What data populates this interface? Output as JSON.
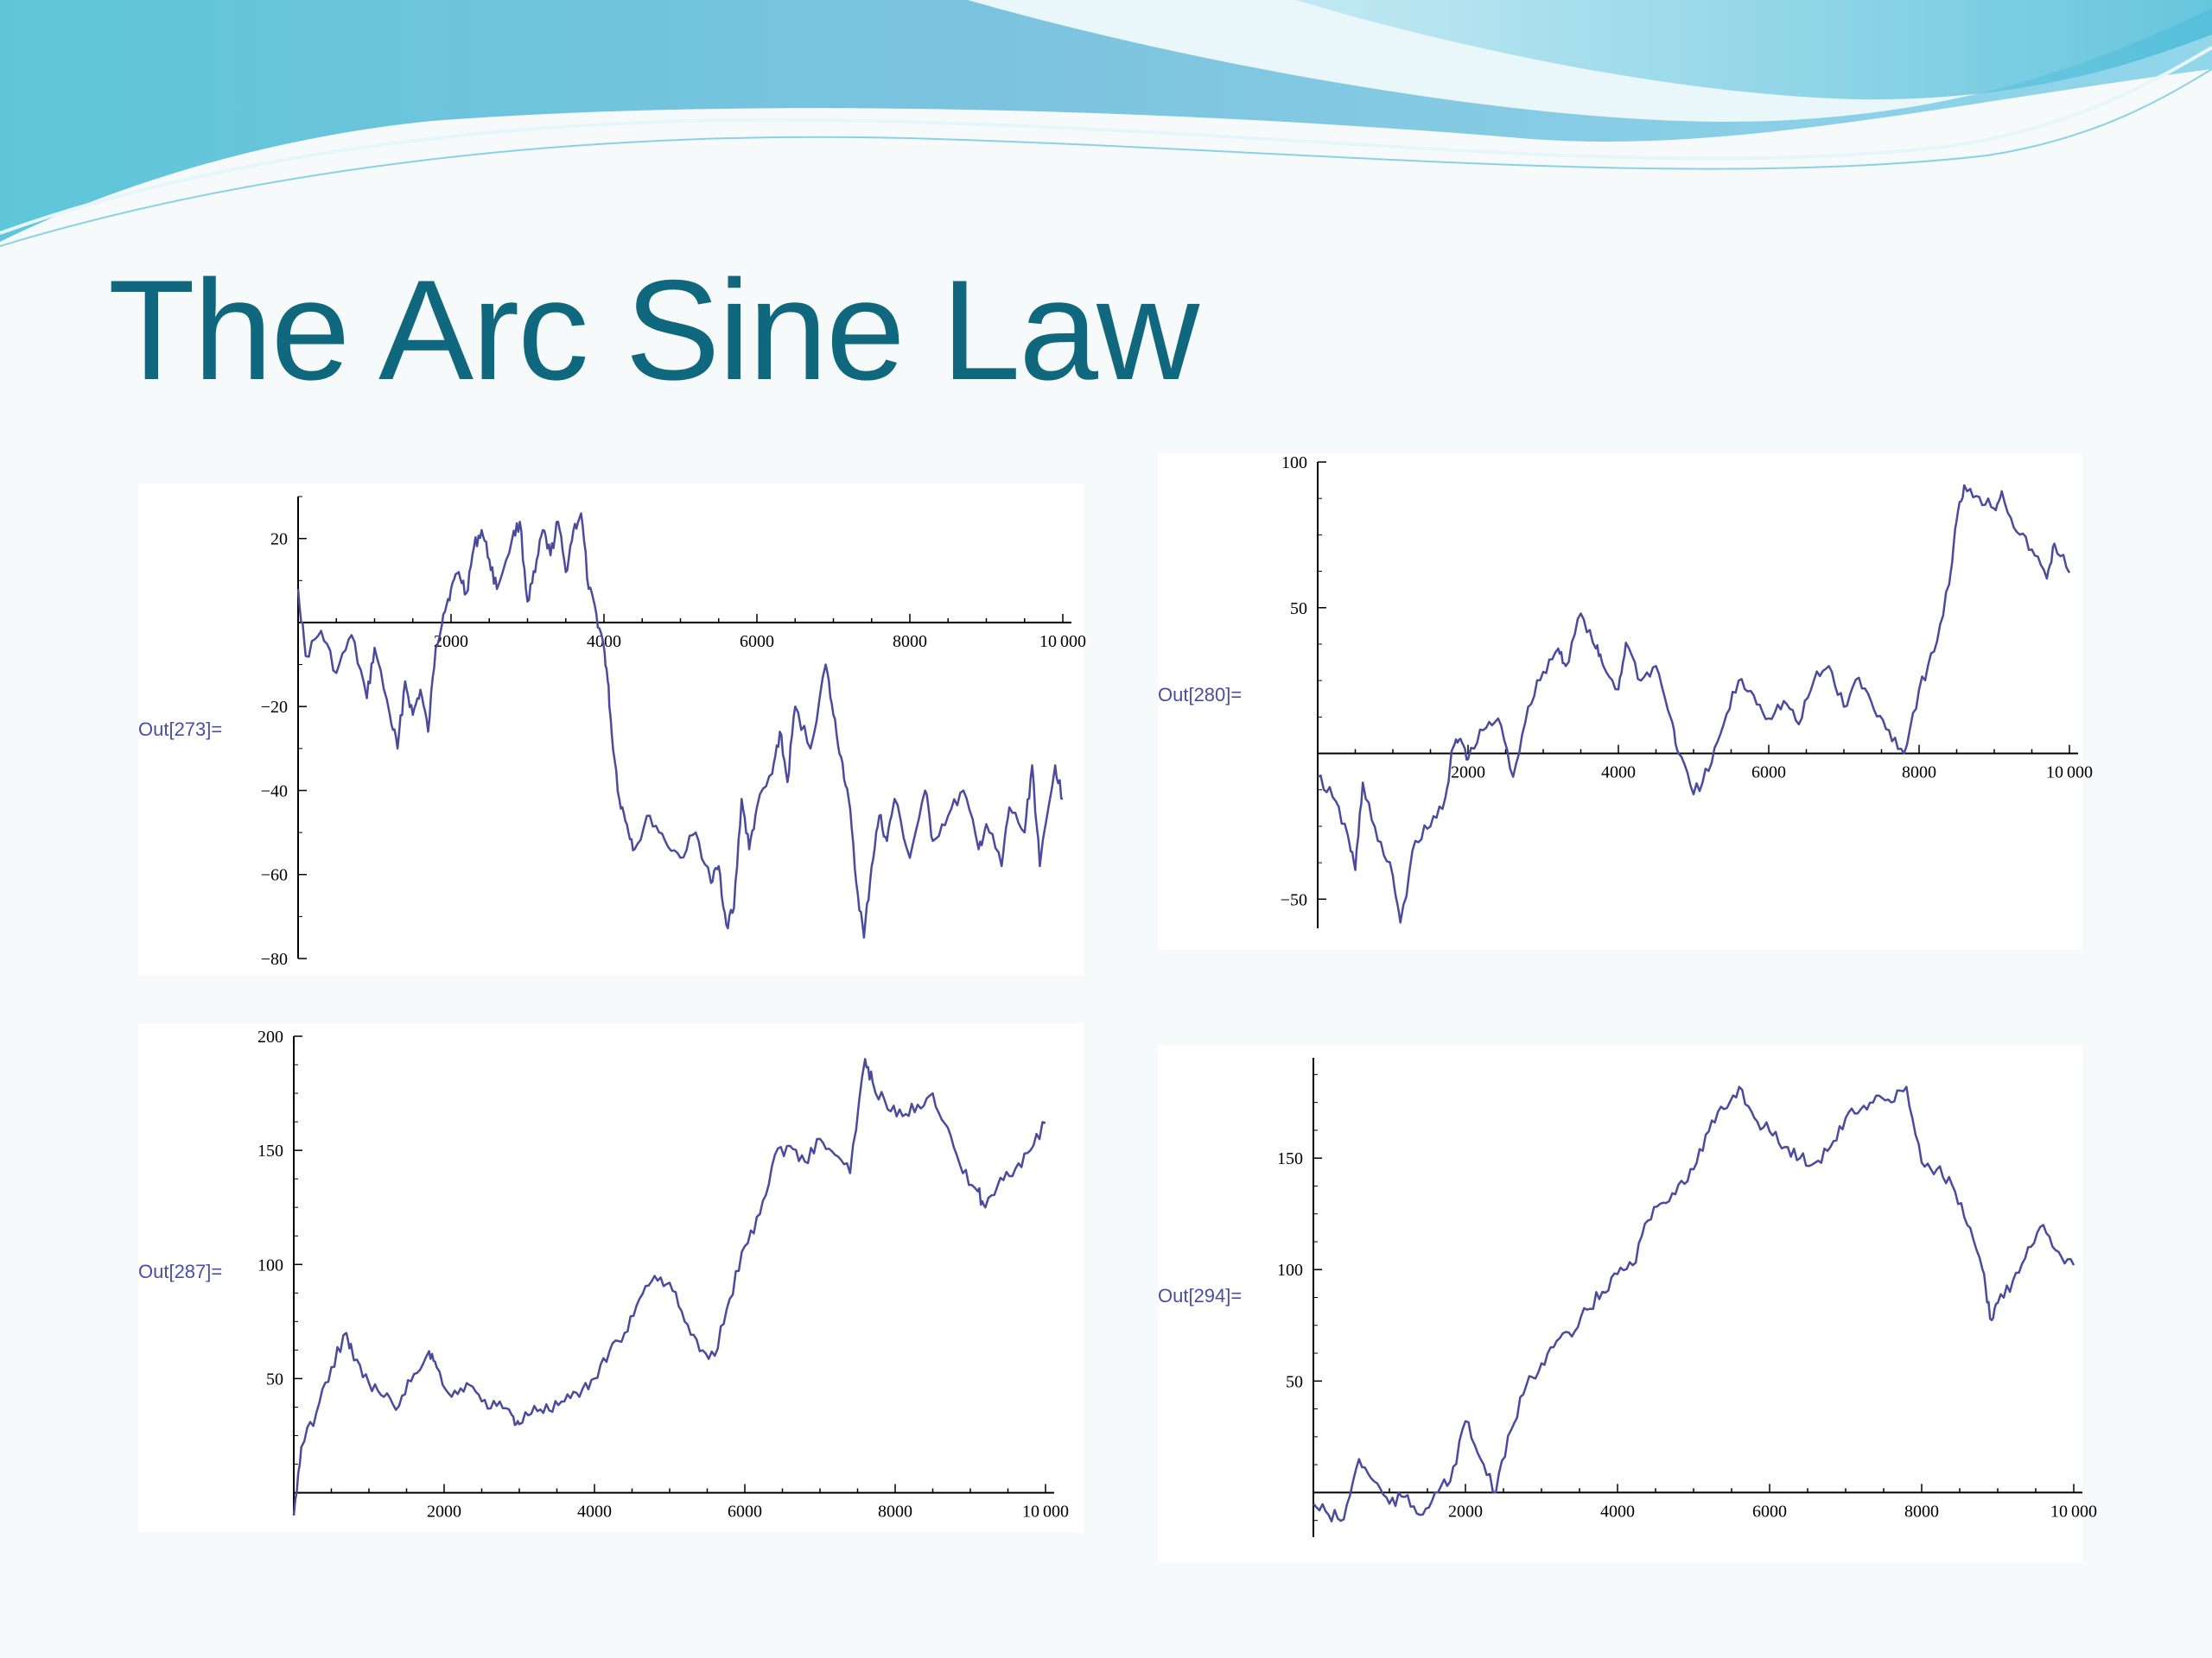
{
  "slide": {
    "title": "The Arc Sine Law",
    "title_color": "#10687e",
    "out_label_color": "#4c4ca6",
    "line_color": "#4b4b9e"
  },
  "chart_data": [
    {
      "type": "line",
      "label": "Out[273]=",
      "title": "",
      "xlabel": "",
      "ylabel": "",
      "xlim": [
        0,
        10000
      ],
      "ylim": [
        -80,
        30
      ],
      "xticks": [
        2000,
        4000,
        6000,
        8000,
        10000
      ],
      "yticks": [
        20,
        -20,
        -40,
        -60,
        -80
      ],
      "grid": false,
      "x": [
        0,
        100,
        300,
        500,
        700,
        900,
        1000,
        1200,
        1300,
        1400,
        1500,
        1600,
        1700,
        1800,
        1900,
        2000,
        2100,
        2200,
        2300,
        2400,
        2500,
        2600,
        2800,
        2900,
        3000,
        3100,
        3200,
        3300,
        3400,
        3500,
        3600,
        3700,
        3800,
        3900,
        4000,
        4050,
        4100,
        4200,
        4300,
        4400,
        4600,
        4800,
        5000,
        5200,
        5400,
        5500,
        5600,
        5700,
        5800,
        5900,
        6000,
        6200,
        6300,
        6400,
        6500,
        6700,
        6900,
        7000,
        7100,
        7200,
        7300,
        7400,
        7500,
        7600,
        7700,
        7800,
        8000,
        8200,
        8300,
        8500,
        8700,
        8900,
        9000,
        9200,
        9300,
        9500,
        9600,
        9700,
        9900,
        10000
      ],
      "y": [
        8,
        -8,
        -2,
        -12,
        -3,
        -18,
        -6,
        -22,
        -30,
        -14,
        -22,
        -16,
        -26,
        -6,
        2,
        8,
        12,
        7,
        18,
        22,
        15,
        8,
        20,
        24,
        5,
        12,
        22,
        16,
        24,
        12,
        22,
        26,
        8,
        2,
        -6,
        -14,
        -26,
        -42,
        -48,
        -54,
        -46,
        -52,
        -56,
        -50,
        -62,
        -58,
        -72,
        -68,
        -42,
        -54,
        -44,
        -36,
        -26,
        -38,
        -20,
        -30,
        -10,
        -22,
        -32,
        -42,
        -62,
        -75,
        -58,
        -46,
        -52,
        -42,
        -56,
        -40,
        -52,
        -46,
        -40,
        -54,
        -48,
        -58,
        -44,
        -50,
        -34,
        -58,
        -34,
        -42
      ]
    },
    {
      "type": "line",
      "label": "Out[280]=",
      "title": "",
      "xlabel": "",
      "ylabel": "",
      "xlim": [
        0,
        10000
      ],
      "ylim": [
        -60,
        100
      ],
      "xticks": [
        2000,
        4000,
        6000,
        8000,
        10000
      ],
      "yticks": [
        100,
        50,
        -50
      ],
      "grid": false,
      "x": [
        0,
        200,
        400,
        500,
        600,
        800,
        1000,
        1100,
        1300,
        1500,
        1700,
        1800,
        1900,
        2000,
        2200,
        2400,
        2600,
        2800,
        3000,
        3200,
        3300,
        3500,
        3700,
        3800,
        4000,
        4100,
        4300,
        4500,
        4700,
        4800,
        5000,
        5200,
        5400,
        5600,
        5800,
        6000,
        6200,
        6400,
        6600,
        6800,
        7000,
        7200,
        7400,
        7600,
        7800,
        8000,
        8200,
        8400,
        8500,
        8600,
        8800,
        9000,
        9100,
        9300,
        9500,
        9700,
        9800,
        10000
      ],
      "y": [
        -8,
        -15,
        -28,
        -40,
        -10,
        -30,
        -42,
        -58,
        -30,
        -25,
        -15,
        2,
        5,
        -2,
        8,
        12,
        -8,
        16,
        28,
        36,
        30,
        48,
        36,
        30,
        22,
        38,
        25,
        30,
        12,
        0,
        -14,
        -6,
        10,
        25,
        20,
        12,
        18,
        10,
        25,
        30,
        16,
        26,
        15,
        8,
        0,
        22,
        35,
        58,
        80,
        92,
        88,
        84,
        90,
        76,
        70,
        60,
        72,
        62
      ]
    },
    {
      "type": "line",
      "label": "Out[287]=",
      "title": "",
      "xlabel": "",
      "ylabel": "",
      "xlim": [
        0,
        10000
      ],
      "ylim": [
        -10,
        200
      ],
      "xticks": [
        2000,
        4000,
        6000,
        8000,
        10000
      ],
      "yticks": [
        200,
        150,
        100,
        50
      ],
      "grid": false,
      "x": [
        0,
        100,
        300,
        500,
        700,
        800,
        1000,
        1200,
        1400,
        1600,
        1800,
        1900,
        2100,
        2300,
        2500,
        2700,
        2900,
        3000,
        3200,
        3400,
        3600,
        3800,
        4000,
        4200,
        4400,
        4600,
        4800,
        5000,
        5200,
        5400,
        5600,
        5800,
        6000,
        6200,
        6400,
        6600,
        6800,
        7000,
        7200,
        7400,
        7600,
        7700,
        7900,
        8100,
        8300,
        8500,
        8700,
        8900,
        9100,
        9200,
        9400,
        9600,
        9800,
        10000
      ],
      "y": [
        -10,
        20,
        35,
        55,
        70,
        58,
        48,
        42,
        38,
        52,
        62,
        55,
        42,
        48,
        40,
        38,
        34,
        30,
        38,
        36,
        40,
        42,
        50,
        62,
        70,
        85,
        95,
        92,
        75,
        62,
        60,
        85,
        108,
        122,
        148,
        152,
        145,
        155,
        148,
        140,
        190,
        180,
        168,
        165,
        170,
        175,
        160,
        140,
        132,
        125,
        138,
        142,
        150,
        162
      ]
    },
    {
      "type": "line",
      "label": "Out[294]=",
      "title": "",
      "xlabel": "",
      "ylabel": "",
      "xlim": [
        0,
        10000
      ],
      "ylim": [
        -20,
        195
      ],
      "xticks": [
        2000,
        4000,
        6000,
        8000,
        10000
      ],
      "yticks": [
        150,
        100,
        50
      ],
      "grid": false,
      "x": [
        0,
        200,
        400,
        600,
        800,
        1000,
        1200,
        1400,
        1600,
        1800,
        2000,
        2200,
        2400,
        2600,
        2800,
        3000,
        3200,
        3400,
        3600,
        3800,
        4000,
        4200,
        4400,
        4600,
        4800,
        5000,
        5200,
        5400,
        5600,
        5800,
        6000,
        6200,
        6400,
        6600,
        6800,
        7000,
        7200,
        7400,
        7600,
        7800,
        8000,
        8200,
        8400,
        8600,
        8800,
        8900,
        9000,
        9200,
        9400,
        9600,
        9800,
        10000
      ],
      "y": [
        -5,
        -10,
        -12,
        15,
        5,
        -5,
        -2,
        -10,
        0,
        5,
        32,
        15,
        0,
        28,
        48,
        58,
        68,
        70,
        82,
        90,
        98,
        102,
        122,
        130,
        138,
        145,
        162,
        172,
        182,
        168,
        162,
        155,
        150,
        148,
        155,
        168,
        172,
        178,
        175,
        182,
        148,
        145,
        138,
        120,
        100,
        78,
        85,
        95,
        110,
        120,
        108,
        102
      ]
    }
  ]
}
